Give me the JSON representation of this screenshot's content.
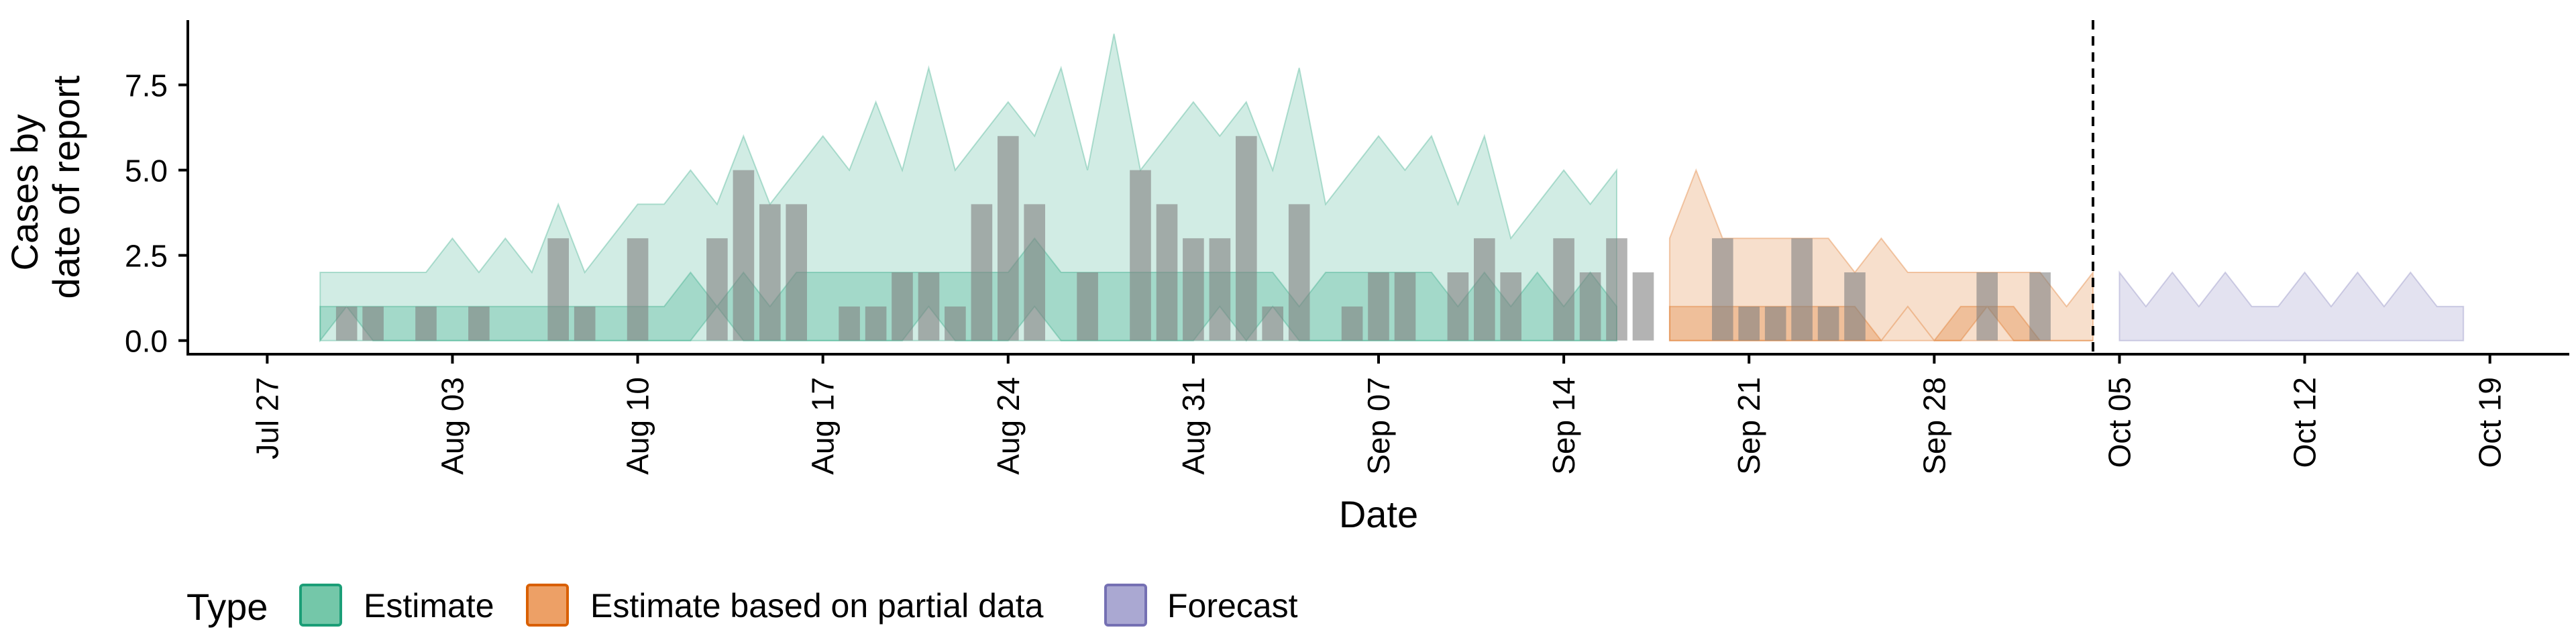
{
  "chart_data": {
    "type": "area",
    "xlabel": "Date",
    "ylabel_lines": [
      "Cases by",
      "date of report"
    ],
    "ylim": [
      -0.4,
      9.4
    ],
    "xlim": [
      "2020-07-24",
      "2020-10-22"
    ],
    "y_ticks": [
      0.0,
      2.5,
      5.0,
      7.5
    ],
    "y_tick_labels": [
      "0.0",
      "2.5",
      "5.0",
      "7.5"
    ],
    "x_ticks": [
      "2020-07-27",
      "2020-08-03",
      "2020-08-10",
      "2020-08-17",
      "2020-08-24",
      "2020-08-31",
      "2020-09-07",
      "2020-09-14",
      "2020-09-21",
      "2020-09-28",
      "2020-10-05",
      "2020-10-12",
      "2020-10-19"
    ],
    "x_tick_labels": [
      "Jul 27",
      "Aug 03",
      "Aug 10",
      "Aug 17",
      "Aug 24",
      "Aug 31",
      "Sep 07",
      "Sep 14",
      "Sep 21",
      "Sep 28",
      "Oct 05",
      "Oct 12",
      "Oct 19"
    ],
    "forecast_line_date": "2020-10-04",
    "legend": {
      "title": "Type",
      "position": "bottom-left",
      "entries": [
        {
          "label": "Estimate",
          "fill": "#74c7a9",
          "stroke": "#1b9e77"
        },
        {
          "label": "Estimate based on partial data",
          "fill": "#eda066",
          "stroke": "#d95f02"
        },
        {
          "label": "Forecast",
          "fill": "#aaa8d2",
          "stroke": "#7570b3"
        }
      ]
    },
    "colors": {
      "estimate": "#1b9e77",
      "partial": "#d95f02",
      "forecast": "#7570b3",
      "bars": "#808080"
    },
    "bars": {
      "x": [
        "2020-07-30",
        "2020-07-31",
        "2020-08-02",
        "2020-08-04",
        "2020-08-07",
        "2020-08-08",
        "2020-08-10",
        "2020-08-13",
        "2020-08-14",
        "2020-08-15",
        "2020-08-16",
        "2020-08-18",
        "2020-08-19",
        "2020-08-20",
        "2020-08-21",
        "2020-08-22",
        "2020-08-23",
        "2020-08-24",
        "2020-08-25",
        "2020-08-27",
        "2020-08-29",
        "2020-08-30",
        "2020-08-31",
        "2020-09-01",
        "2020-09-02",
        "2020-09-03",
        "2020-09-04",
        "2020-09-06",
        "2020-09-07",
        "2020-09-08",
        "2020-09-10",
        "2020-09-11",
        "2020-09-12",
        "2020-09-14",
        "2020-09-15",
        "2020-09-16",
        "2020-09-17",
        "2020-09-20",
        "2020-09-21",
        "2020-09-22",
        "2020-09-23",
        "2020-09-24",
        "2020-09-25",
        "2020-09-30",
        "2020-10-02"
      ],
      "values": [
        1,
        1,
        1,
        1,
        3,
        1,
        3,
        3,
        5,
        4,
        4,
        1,
        1,
        2,
        2,
        1,
        4,
        6,
        4,
        2,
        5,
        4,
        3,
        3,
        6,
        1,
        4,
        1,
        2,
        2,
        2,
        3,
        2,
        3,
        2,
        3,
        2,
        3,
        1,
        1,
        3,
        1,
        2,
        2,
        2
      ]
    },
    "series": [
      {
        "type": "Estimate",
        "band": "outer",
        "x": [
          "2020-07-29",
          "2020-07-30",
          "2020-07-31",
          "2020-08-01",
          "2020-08-02",
          "2020-08-03",
          "2020-08-04",
          "2020-08-05",
          "2020-08-06",
          "2020-08-07",
          "2020-08-08",
          "2020-08-09",
          "2020-08-10",
          "2020-08-11",
          "2020-08-12",
          "2020-08-13",
          "2020-08-14",
          "2020-08-15",
          "2020-08-16",
          "2020-08-17",
          "2020-08-18",
          "2020-08-19",
          "2020-08-20",
          "2020-08-21",
          "2020-08-22",
          "2020-08-23",
          "2020-08-24",
          "2020-08-25",
          "2020-08-26",
          "2020-08-27",
          "2020-08-28",
          "2020-08-29",
          "2020-08-30",
          "2020-08-31",
          "2020-09-01",
          "2020-09-02",
          "2020-09-03",
          "2020-09-04",
          "2020-09-05",
          "2020-09-06",
          "2020-09-07",
          "2020-09-08",
          "2020-09-09",
          "2020-09-10",
          "2020-09-11",
          "2020-09-12",
          "2020-09-13",
          "2020-09-14",
          "2020-09-15",
          "2020-09-16"
        ],
        "lower": [
          0,
          0,
          0,
          0,
          0,
          0,
          0,
          0,
          0,
          0,
          0,
          0,
          0,
          0,
          0,
          0,
          0,
          0,
          0,
          0,
          0,
          0,
          0,
          0,
          0,
          0,
          0,
          0,
          0,
          0,
          0,
          0,
          0,
          0,
          0,
          0,
          0,
          0,
          0,
          0,
          0,
          0,
          0,
          0,
          0,
          0,
          0,
          0,
          0,
          0
        ],
        "upper": [
          2,
          2,
          2,
          2,
          2,
          3,
          2,
          3,
          2,
          4,
          2,
          3,
          4,
          4,
          5,
          4,
          6,
          4,
          5,
          6,
          5,
          7,
          5,
          8,
          5,
          6,
          7,
          6,
          8,
          5,
          9,
          5,
          6,
          7,
          6,
          7,
          5,
          8,
          4,
          5,
          6,
          5,
          6,
          4,
          6,
          3,
          4,
          5,
          4,
          5
        ]
      },
      {
        "type": "Estimate",
        "band": "inner",
        "x": [
          "2020-07-29",
          "2020-07-30",
          "2020-07-31",
          "2020-08-01",
          "2020-08-02",
          "2020-08-03",
          "2020-08-04",
          "2020-08-05",
          "2020-08-06",
          "2020-08-07",
          "2020-08-08",
          "2020-08-09",
          "2020-08-10",
          "2020-08-11",
          "2020-08-12",
          "2020-08-13",
          "2020-08-14",
          "2020-08-15",
          "2020-08-16",
          "2020-08-17",
          "2020-08-18",
          "2020-08-19",
          "2020-08-20",
          "2020-08-21",
          "2020-08-22",
          "2020-08-23",
          "2020-08-24",
          "2020-08-25",
          "2020-08-26",
          "2020-08-27",
          "2020-08-28",
          "2020-08-29",
          "2020-08-30",
          "2020-08-31",
          "2020-09-01",
          "2020-09-02",
          "2020-09-03",
          "2020-09-04",
          "2020-09-05",
          "2020-09-06",
          "2020-09-07",
          "2020-09-08",
          "2020-09-09",
          "2020-09-10",
          "2020-09-11",
          "2020-09-12",
          "2020-09-13",
          "2020-09-14",
          "2020-09-15",
          "2020-09-16"
        ],
        "lower": [
          0,
          1,
          0,
          0,
          0,
          0,
          0,
          0,
          0,
          0,
          0,
          0,
          0,
          0,
          0,
          1,
          0,
          0,
          0,
          0,
          0,
          0,
          0,
          1,
          0,
          0,
          0,
          1,
          0,
          0,
          0,
          0,
          0,
          0,
          1,
          0,
          1,
          0,
          0,
          0,
          0,
          0,
          0,
          0,
          0,
          0,
          0,
          0,
          0,
          0
        ],
        "upper": [
          1,
          1,
          1,
          1,
          1,
          1,
          1,
          1,
          1,
          1,
          1,
          1,
          1,
          1,
          2,
          1,
          2,
          1,
          2,
          2,
          2,
          2,
          2,
          2,
          2,
          2,
          2,
          3,
          2,
          2,
          2,
          2,
          2,
          2,
          2,
          2,
          2,
          1,
          2,
          2,
          2,
          2,
          2,
          1,
          2,
          1,
          2,
          1,
          2,
          1
        ]
      },
      {
        "type": "Estimate based on partial data",
        "band": "outer",
        "x": [
          "2020-09-18",
          "2020-09-19",
          "2020-09-20",
          "2020-09-21",
          "2020-09-22",
          "2020-09-23",
          "2020-09-24",
          "2020-09-25",
          "2020-09-26",
          "2020-09-27",
          "2020-09-28",
          "2020-09-29",
          "2020-09-30",
          "2020-10-01",
          "2020-10-02",
          "2020-10-03",
          "2020-10-04"
        ],
        "lower": [
          0,
          0,
          0,
          0,
          0,
          0,
          0,
          0,
          0,
          0,
          0,
          0,
          0,
          0,
          0,
          0,
          0
        ],
        "upper": [
          3,
          5,
          3,
          3,
          3,
          3,
          3,
          2,
          3,
          2,
          2,
          2,
          2,
          2,
          2,
          1,
          2
        ]
      },
      {
        "type": "Estimate based on partial data",
        "band": "inner",
        "x": [
          "2020-09-18",
          "2020-09-19",
          "2020-09-20",
          "2020-09-21",
          "2020-09-22",
          "2020-09-23",
          "2020-09-24",
          "2020-09-25",
          "2020-09-26",
          "2020-09-27",
          "2020-09-28",
          "2020-09-29",
          "2020-09-30",
          "2020-10-01",
          "2020-10-02",
          "2020-10-03",
          "2020-10-04"
        ],
        "lower": [
          0,
          0,
          0,
          0,
          0,
          0,
          0,
          0,
          0,
          1,
          0,
          0,
          1,
          0,
          0,
          0,
          0
        ],
        "upper": [
          1,
          1,
          1,
          1,
          1,
          1,
          1,
          1,
          0,
          1,
          0,
          1,
          1,
          1,
          0,
          0,
          0
        ]
      },
      {
        "type": "Forecast",
        "band": "outer",
        "x": [
          "2020-10-05",
          "2020-10-06",
          "2020-10-07",
          "2020-10-08",
          "2020-10-09",
          "2020-10-10",
          "2020-10-11",
          "2020-10-12",
          "2020-10-13",
          "2020-10-14",
          "2020-10-15",
          "2020-10-16",
          "2020-10-17",
          "2020-10-18"
        ],
        "lower": [
          0,
          0,
          0,
          0,
          0,
          0,
          0,
          0,
          0,
          0,
          0,
          0,
          0,
          0
        ],
        "upper": [
          2,
          1,
          2,
          1,
          2,
          1,
          1,
          2,
          1,
          2,
          1,
          2,
          1,
          1
        ]
      }
    ]
  }
}
